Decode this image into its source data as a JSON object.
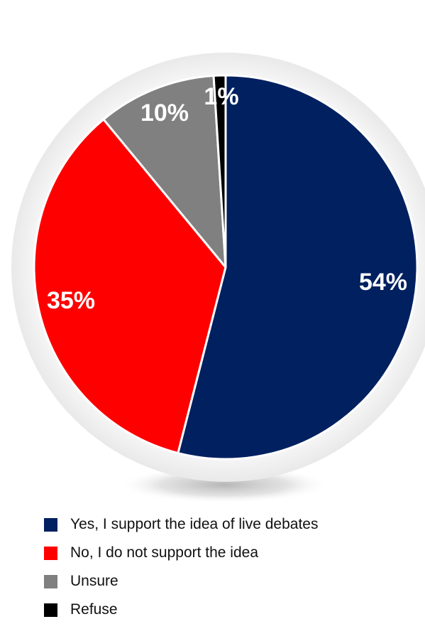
{
  "chart_data": {
    "type": "pie",
    "title": "",
    "slices": [
      {
        "label": "Yes, I support the idea of live debates",
        "value": 54,
        "display": "54%",
        "color": "#002060"
      },
      {
        "label": "No, I do not support the idea",
        "value": 35,
        "display": "35%",
        "color": "#ff0000"
      },
      {
        "label": "Unsure",
        "value": 10,
        "display": "10%",
        "color": "#808080"
      },
      {
        "label": "Refuse",
        "value": 1,
        "display": "1%",
        "color": "#000000"
      }
    ],
    "legend_position": "bottom"
  }
}
